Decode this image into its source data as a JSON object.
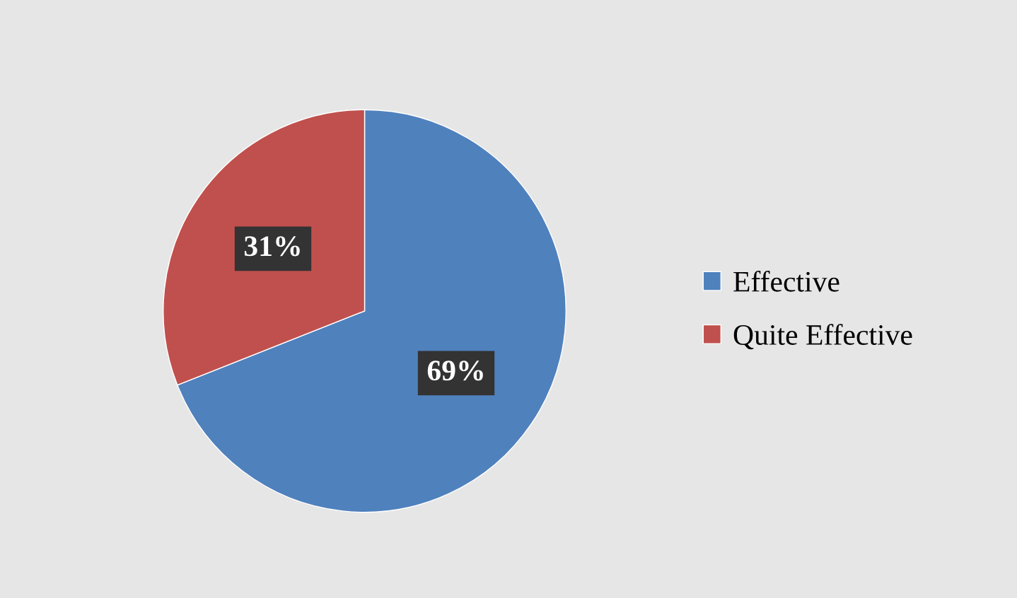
{
  "chart_data": {
    "type": "pie",
    "categories": [
      "Effective",
      "Quite Effective"
    ],
    "values": [
      69,
      31
    ],
    "colors": [
      "#4f81bd",
      "#c0504d"
    ],
    "value_labels": [
      "69%",
      "31%"
    ],
    "legend": "right"
  }
}
